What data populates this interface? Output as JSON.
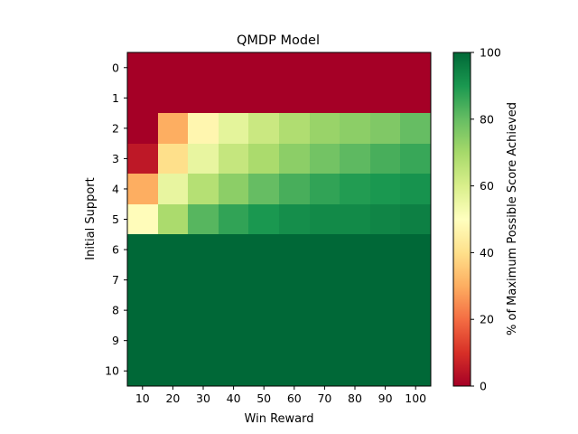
{
  "chart_data": {
    "type": "heatmap",
    "title": "QMDP Model",
    "xlabel": "Win Reward",
    "ylabel": "Initial Support",
    "x_categories": [
      "10",
      "20",
      "30",
      "40",
      "50",
      "60",
      "70",
      "80",
      "90",
      "100"
    ],
    "y_categories": [
      "0",
      "1",
      "2",
      "3",
      "4",
      "5",
      "6",
      "7",
      "8",
      "9",
      "10"
    ],
    "values": [
      [
        0,
        0,
        0,
        0,
        0,
        0,
        0,
        0,
        0,
        0
      ],
      [
        0,
        0,
        0,
        0,
        0,
        0,
        0,
        0,
        0,
        0
      ],
      [
        0,
        30,
        47,
        57,
        63,
        68,
        72,
        74,
        76,
        80
      ],
      [
        5,
        40,
        56,
        64,
        69,
        74,
        78,
        81,
        84,
        86
      ],
      [
        30,
        56,
        67,
        74,
        80,
        84,
        87,
        89,
        90,
        91
      ],
      [
        49,
        69,
        82,
        87,
        90,
        92,
        93,
        93,
        94,
        95
      ],
      [
        100,
        100,
        100,
        100,
        100,
        100,
        100,
        100,
        100,
        100
      ],
      [
        100,
        100,
        100,
        100,
        100,
        100,
        100,
        100,
        100,
        100
      ],
      [
        100,
        100,
        100,
        100,
        100,
        100,
        100,
        100,
        100,
        100
      ],
      [
        100,
        100,
        100,
        100,
        100,
        100,
        100,
        100,
        100,
        100
      ],
      [
        100,
        100,
        100,
        100,
        100,
        100,
        100,
        100,
        100,
        100
      ]
    ],
    "colorbar": {
      "label": "% of Maximum Possible Score Achieved",
      "range": [
        0,
        100
      ],
      "ticks": [
        "0",
        "20",
        "40",
        "60",
        "80",
        "100"
      ],
      "colormap": "RdYlGn"
    },
    "grid": false
  }
}
